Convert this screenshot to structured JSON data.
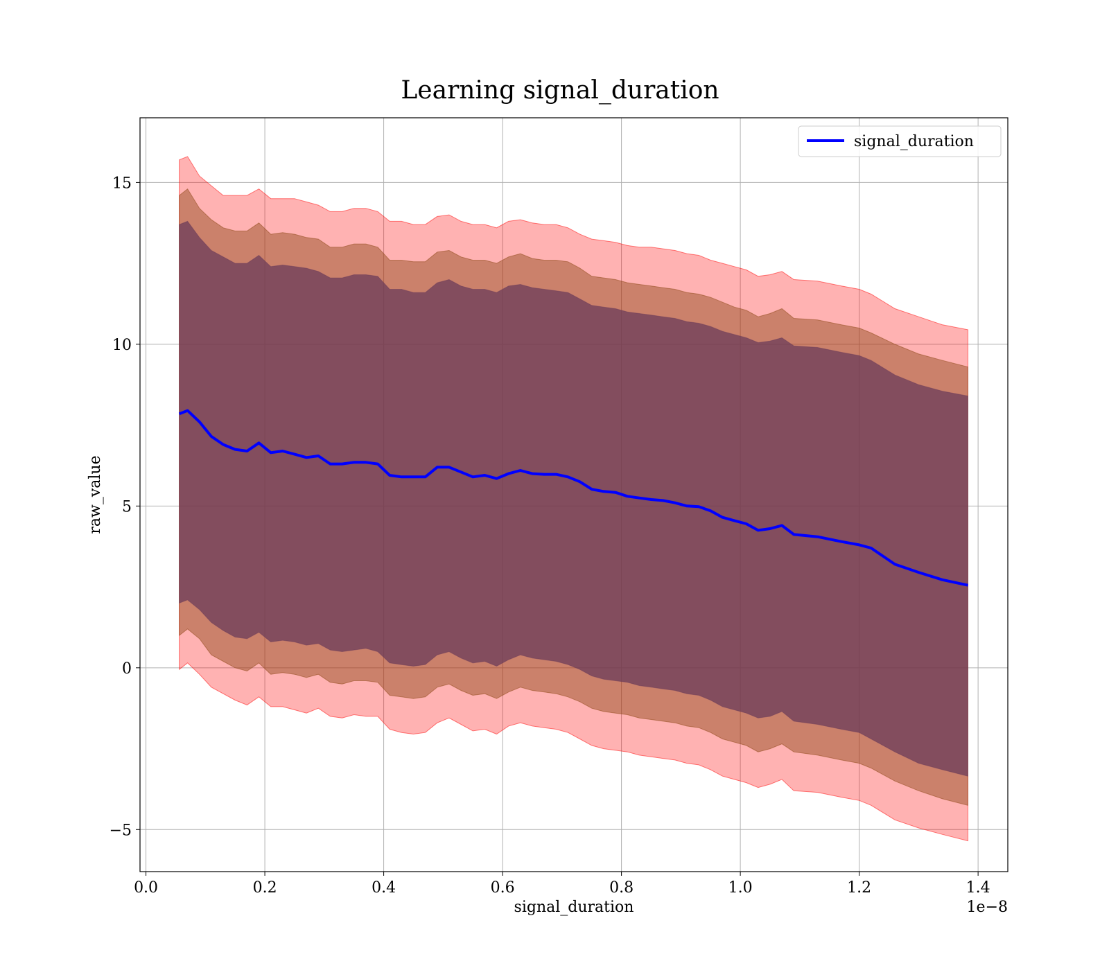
{
  "chart_data": {
    "type": "area",
    "title": "Learning signal_duration",
    "xlabel": "signal_duration",
    "ylabel": "raw_value",
    "x_offset_label": "1e−8",
    "xlim": [
      -0.01,
      1.45
    ],
    "ylim": [
      -6.3,
      17.0
    ],
    "xticks": [
      0.0,
      0.2,
      0.4,
      0.6,
      0.8,
      1.0,
      1.2,
      1.4
    ],
    "xtick_labels": [
      "0.0",
      "0.2",
      "0.4",
      "0.6",
      "0.8",
      "1.0",
      "1.2",
      "1.4"
    ],
    "yticks": [
      -5,
      0,
      5,
      10,
      15
    ],
    "ytick_labels": [
      "−5",
      "0",
      "5",
      "10",
      "15"
    ],
    "grid": true,
    "legend_position": "top-right",
    "colors": {
      "mean_line": "#0000ff",
      "band_outer": "#ff0000",
      "band_middle": "#8b4513",
      "band_inner": "#6b3c5a"
    },
    "x": [
      0.056,
      0.07,
      0.09,
      0.11,
      0.13,
      0.15,
      0.17,
      0.19,
      0.21,
      0.23,
      0.25,
      0.27,
      0.29,
      0.31,
      0.33,
      0.35,
      0.37,
      0.39,
      0.41,
      0.43,
      0.45,
      0.47,
      0.49,
      0.51,
      0.53,
      0.55,
      0.57,
      0.59,
      0.61,
      0.63,
      0.65,
      0.67,
      0.69,
      0.71,
      0.73,
      0.75,
      0.77,
      0.79,
      0.81,
      0.83,
      0.85,
      0.87,
      0.89,
      0.91,
      0.93,
      0.95,
      0.97,
      0.99,
      1.01,
      1.03,
      1.05,
      1.07,
      1.09,
      1.13,
      1.17,
      1.2,
      1.22,
      1.26,
      1.3,
      1.34,
      1.383
    ],
    "series": [
      {
        "name": "signal_duration",
        "values": [
          7.85,
          7.95,
          7.6,
          7.15,
          6.9,
          6.75,
          6.7,
          6.95,
          6.65,
          6.7,
          6.6,
          6.5,
          6.55,
          6.3,
          6.3,
          6.35,
          6.35,
          6.3,
          5.95,
          5.9,
          5.9,
          5.9,
          6.2,
          6.2,
          6.05,
          5.9,
          5.95,
          5.85,
          6.0,
          6.1,
          6.0,
          5.98,
          5.98,
          5.9,
          5.75,
          5.52,
          5.45,
          5.42,
          5.3,
          5.25,
          5.2,
          5.17,
          5.1,
          5.0,
          4.98,
          4.85,
          4.65,
          4.55,
          4.45,
          4.25,
          4.3,
          4.4,
          4.12,
          4.05,
          3.9,
          3.8,
          3.7,
          3.2,
          2.95,
          2.72,
          2.55
        ]
      }
    ],
    "bands": [
      {
        "level": "outer",
        "upper": [
          15.7,
          15.8,
          15.2,
          14.9,
          14.6,
          14.6,
          14.6,
          14.8,
          14.5,
          14.5,
          14.5,
          14.4,
          14.3,
          14.1,
          14.1,
          14.2,
          14.2,
          14.1,
          13.8,
          13.8,
          13.7,
          13.7,
          13.95,
          14.0,
          13.8,
          13.7,
          13.7,
          13.6,
          13.8,
          13.85,
          13.75,
          13.7,
          13.7,
          13.6,
          13.4,
          13.25,
          13.2,
          13.15,
          13.05,
          13.0,
          13.0,
          12.95,
          12.9,
          12.8,
          12.75,
          12.6,
          12.5,
          12.4,
          12.3,
          12.1,
          12.15,
          12.25,
          12.0,
          11.95,
          11.8,
          11.7,
          11.55,
          11.1,
          10.85,
          10.6,
          10.45
        ],
        "lower": [
          -0.05,
          0.15,
          -0.2,
          -0.6,
          -0.8,
          -1.0,
          -1.15,
          -0.9,
          -1.2,
          -1.2,
          -1.3,
          -1.4,
          -1.25,
          -1.5,
          -1.55,
          -1.45,
          -1.5,
          -1.5,
          -1.9,
          -2.0,
          -2.05,
          -2.0,
          -1.7,
          -1.55,
          -1.75,
          -1.95,
          -1.9,
          -2.05,
          -1.8,
          -1.7,
          -1.8,
          -1.85,
          -1.9,
          -2.0,
          -2.2,
          -2.4,
          -2.5,
          -2.55,
          -2.6,
          -2.7,
          -2.75,
          -2.8,
          -2.85,
          -2.95,
          -3.0,
          -3.15,
          -3.35,
          -3.45,
          -3.55,
          -3.7,
          -3.6,
          -3.45,
          -3.8,
          -3.85,
          -4.0,
          -4.1,
          -4.25,
          -4.7,
          -4.95,
          -5.15,
          -5.35
        ]
      },
      {
        "level": "middle",
        "upper": [
          14.6,
          14.8,
          14.2,
          13.85,
          13.6,
          13.5,
          13.5,
          13.75,
          13.4,
          13.45,
          13.4,
          13.3,
          13.25,
          13.0,
          13.0,
          13.1,
          13.1,
          13.0,
          12.6,
          12.6,
          12.55,
          12.55,
          12.85,
          12.9,
          12.7,
          12.6,
          12.6,
          12.5,
          12.7,
          12.8,
          12.65,
          12.6,
          12.6,
          12.55,
          12.35,
          12.1,
          12.05,
          12.0,
          11.9,
          11.85,
          11.8,
          11.75,
          11.7,
          11.6,
          11.55,
          11.45,
          11.3,
          11.15,
          11.05,
          10.85,
          10.95,
          11.1,
          10.8,
          10.75,
          10.6,
          10.5,
          10.35,
          10.0,
          9.7,
          9.5,
          9.3
        ],
        "lower": [
          1.0,
          1.2,
          0.9,
          0.4,
          0.2,
          0.0,
          -0.1,
          0.15,
          -0.2,
          -0.15,
          -0.2,
          -0.3,
          -0.2,
          -0.45,
          -0.5,
          -0.4,
          -0.4,
          -0.45,
          -0.85,
          -0.9,
          -0.95,
          -0.9,
          -0.6,
          -0.5,
          -0.7,
          -0.85,
          -0.8,
          -0.95,
          -0.75,
          -0.6,
          -0.7,
          -0.75,
          -0.8,
          -0.9,
          -1.05,
          -1.25,
          -1.35,
          -1.4,
          -1.45,
          -1.55,
          -1.6,
          -1.65,
          -1.7,
          -1.8,
          -1.85,
          -2.0,
          -2.2,
          -2.3,
          -2.4,
          -2.6,
          -2.5,
          -2.35,
          -2.6,
          -2.7,
          -2.85,
          -2.95,
          -3.1,
          -3.5,
          -3.8,
          -4.05,
          -4.25
        ]
      },
      {
        "level": "inner",
        "upper": [
          13.7,
          13.8,
          13.3,
          12.9,
          12.7,
          12.5,
          12.5,
          12.75,
          12.4,
          12.45,
          12.4,
          12.35,
          12.25,
          12.05,
          12.05,
          12.15,
          12.15,
          12.1,
          11.7,
          11.7,
          11.6,
          11.6,
          11.9,
          12.0,
          11.8,
          11.7,
          11.7,
          11.6,
          11.8,
          11.85,
          11.75,
          11.7,
          11.65,
          11.6,
          11.4,
          11.2,
          11.15,
          11.1,
          11.0,
          10.95,
          10.9,
          10.85,
          10.8,
          10.7,
          10.65,
          10.55,
          10.4,
          10.3,
          10.2,
          10.05,
          10.1,
          10.2,
          9.95,
          9.9,
          9.75,
          9.65,
          9.5,
          9.05,
          8.75,
          8.55,
          8.4
        ],
        "lower": [
          2.0,
          2.1,
          1.8,
          1.4,
          1.15,
          0.95,
          0.9,
          1.1,
          0.8,
          0.85,
          0.8,
          0.7,
          0.75,
          0.55,
          0.5,
          0.55,
          0.6,
          0.5,
          0.15,
          0.1,
          0.05,
          0.1,
          0.4,
          0.5,
          0.3,
          0.15,
          0.2,
          0.05,
          0.25,
          0.4,
          0.3,
          0.25,
          0.2,
          0.1,
          -0.05,
          -0.25,
          -0.35,
          -0.4,
          -0.45,
          -0.55,
          -0.6,
          -0.65,
          -0.7,
          -0.8,
          -0.85,
          -1.0,
          -1.2,
          -1.3,
          -1.4,
          -1.55,
          -1.5,
          -1.35,
          -1.65,
          -1.75,
          -1.9,
          -2.0,
          -2.2,
          -2.6,
          -2.95,
          -3.15,
          -3.35
        ]
      }
    ]
  }
}
